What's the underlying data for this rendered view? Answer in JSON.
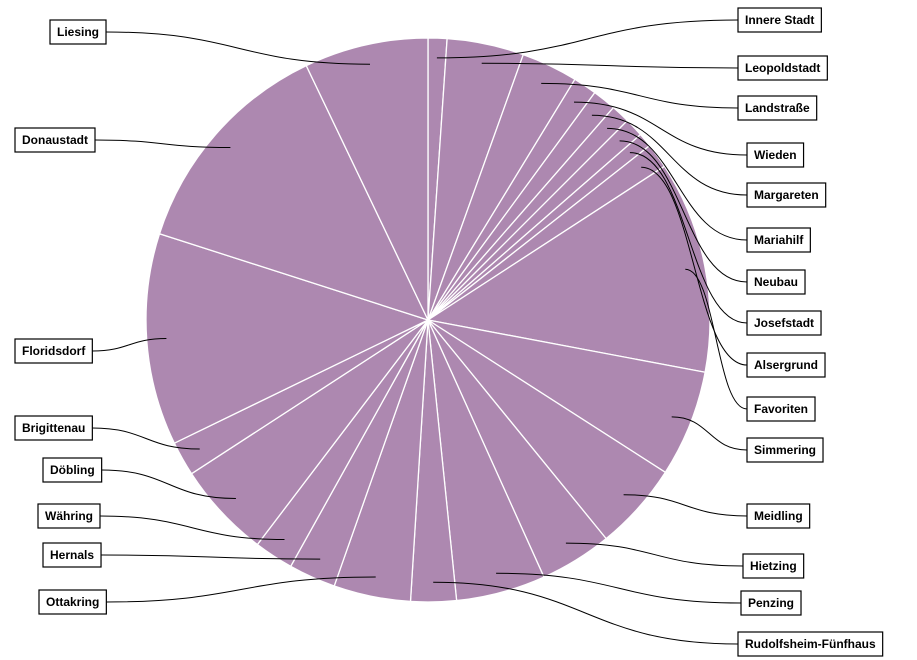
{
  "chart_data": {
    "type": "pie",
    "slice_color": "#ad88b0",
    "border_color": "#ffffff",
    "categories": [
      "Innere Stadt",
      "Leopoldstadt",
      "Landstraße",
      "Wieden",
      "Margareten",
      "Mariahilf",
      "Neubau",
      "Josefstadt",
      "Alsergrund",
      "Favoriten",
      "Simmering",
      "Meidling",
      "Hietzing",
      "Penzing",
      "Rudolfsheim-Fünfhaus",
      "Ottakring",
      "Hernals",
      "Währing",
      "Döbling",
      "Brigittenau",
      "Floridsdorf",
      "Donaustadt",
      "Liesing"
    ],
    "values": [
      1.2,
      4.9,
      3.6,
      1.5,
      1.5,
      1.2,
      1.2,
      0.9,
      1.6,
      13.5,
      6.8,
      5.6,
      4.6,
      5.7,
      2.9,
      4.9,
      3.0,
      2.5,
      6.1,
      2.2,
      13.5,
      14.4,
      7.9
    ]
  }
}
